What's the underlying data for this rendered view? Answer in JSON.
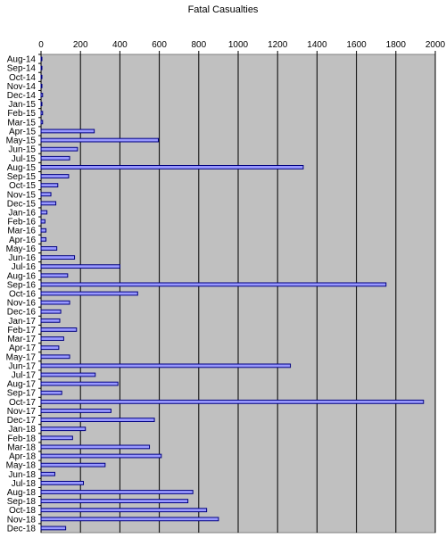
{
  "chart_data": {
    "type": "bar",
    "orientation": "horizontal",
    "title": "Fatal Casualties",
    "xlabel": "",
    "ylabel": "",
    "xlim": [
      0,
      2000
    ],
    "xticks": [
      0,
      200,
      400,
      600,
      800,
      1000,
      1200,
      1400,
      1600,
      1800,
      2000
    ],
    "x_axis_position": "top",
    "grid": "vertical",
    "legend": "none",
    "colors": {
      "plot_background": "#c0c0c0",
      "bar_fill": "#9999ff",
      "bar_stroke": "#000080",
      "grid": "#000000"
    },
    "categories": [
      "Aug-14",
      "Sep-14",
      "Oct-14",
      "Nov-14",
      "Dec-14",
      "Jan-15",
      "Feb-15",
      "Mar-15",
      "Apr-15",
      "May-15",
      "Jun-15",
      "Jul-15",
      "Aug-15",
      "Sep-15",
      "Oct-15",
      "Nov-15",
      "Dec-15",
      "Jan-16",
      "Feb-16",
      "Mar-16",
      "Apr-16",
      "May-16",
      "Jun-16",
      "Jul-16",
      "Aug-16",
      "Sep-16",
      "Oct-16",
      "Nov-16",
      "Dec-16",
      "Jan-17",
      "Feb-17",
      "Mar-17",
      "Apr-17",
      "May-17",
      "Jun-17",
      "Jul-17",
      "Aug-17",
      "Sep-17",
      "Oct-17",
      "Nov-17",
      "Dec-17",
      "Jan-18",
      "Feb-18",
      "Mar-18",
      "Apr-18",
      "May-18",
      "Jun-18",
      "Jul-18",
      "Aug-18",
      "Sep-18",
      "Oct-18",
      "Nov-18",
      "Dec-18"
    ],
    "values": [
      2,
      2,
      2,
      2,
      8,
      2,
      8,
      8,
      270,
      595,
      185,
      145,
      1330,
      140,
      85,
      50,
      75,
      30,
      20,
      25,
      25,
      80,
      170,
      400,
      135,
      1750,
      490,
      145,
      100,
      95,
      180,
      115,
      90,
      145,
      1265,
      275,
      390,
      105,
      1940,
      355,
      575,
      225,
      160,
      550,
      610,
      325,
      70,
      215,
      770,
      745,
      840,
      900,
      125
    ]
  }
}
